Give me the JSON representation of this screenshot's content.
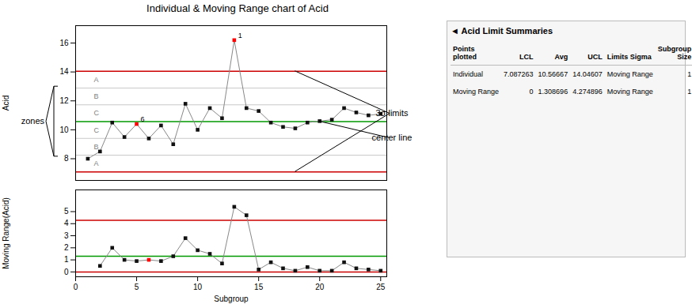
{
  "chart_data": [
    {
      "type": "line",
      "title": "Individual & Moving Range chart of Acid",
      "ylabel": "Acid",
      "x": [
        1,
        2,
        3,
        4,
        5,
        6,
        7,
        8,
        9,
        10,
        11,
        12,
        13,
        14,
        15,
        16,
        17,
        18,
        19,
        20,
        21,
        22,
        23,
        24,
        25
      ],
      "series": [
        {
          "color": "#888888",
          "marker": "square",
          "values": [
            8.0,
            8.5,
            10.5,
            9.5,
            10.4,
            9.4,
            10.3,
            9.0,
            11.8,
            10.0,
            11.5,
            10.8,
            16.2,
            11.5,
            11.3,
            10.5,
            10.2,
            10.1,
            10.5,
            10.6,
            10.7,
            11.5,
            11.2,
            11.0,
            11.1
          ],
          "colors": [
            "#111111",
            "#111111",
            "#111111",
            "#111111",
            "red",
            "#111111",
            "#111111",
            "#111111",
            "#111111",
            "#111111",
            "#111111",
            "#111111",
            "red",
            "#111111",
            "#111111",
            "#111111",
            "#111111",
            "#111111",
            "#111111",
            "#111111",
            "#111111",
            "#111111",
            "#111111",
            "#111111",
            "#111111"
          ]
        }
      ],
      "limit_lines": [
        {
          "value": 14.04607,
          "color": "#cc0000"
        },
        {
          "value": 7.087263,
          "color": "#cc0000"
        },
        {
          "value": 10.56667,
          "color": "#009900"
        }
      ],
      "zone_lines": [
        {
          "value": 12.88625,
          "color": "#bbbbbb"
        },
        {
          "value": 11.72646,
          "color": "#bbbbbb"
        },
        {
          "value": 9.40688,
          "color": "#bbbbbb"
        },
        {
          "value": 8.24709,
          "color": "#bbbbbb"
        }
      ],
      "zone_labels": [
        {
          "text": "A",
          "x": 1.5,
          "y": 13.46616,
          "color": "gray"
        },
        {
          "text": "B",
          "x": 1.5,
          "y": 12.306355,
          "color": "gray"
        },
        {
          "text": "C",
          "x": 1.5,
          "y": 11.146565,
          "color": "gray"
        },
        {
          "text": "C",
          "x": 1.5,
          "y": 9.986775,
          "color": "gray"
        },
        {
          "text": "B",
          "x": 1.5,
          "y": 8.826985,
          "color": "gray"
        },
        {
          "text": "A",
          "x": 1.5,
          "y": 7.6671765,
          "color": "gray"
        }
      ],
      "point_labels": [
        {
          "text": "1",
          "x": 13,
          "y": 16.2
        },
        {
          "text": "6",
          "x": 5,
          "y": 10.4
        }
      ],
      "callouts": [
        {
          "text": "3σ limits",
          "from": [
            {
              "x": 18,
              "y": 14.04607
            },
            {
              "x": 18,
              "y": 7.087263
            }
          ]
        },
        {
          "text": "center line",
          "from": [
            {
              "x": 20,
              "y": 10.56667
            }
          ]
        }
      ],
      "bracket": {
        "text": "zones",
        "from": 12.98625,
        "to": 8.14709
      },
      "xlim": [
        0,
        25.5
      ],
      "xticks": [],
      "ylim": [
        6.5,
        17.2
      ],
      "yticks": [
        8,
        10,
        12,
        14,
        16
      ],
      "grid": false
    },
    {
      "type": "line",
      "ylabel": "Moving Range(Acid)",
      "xlabel": "Subgroup",
      "x": [
        2,
        3,
        4,
        5,
        6,
        7,
        8,
        9,
        10,
        11,
        12,
        13,
        14,
        15,
        16,
        17,
        18,
        19,
        20,
        21,
        22,
        23,
        24,
        25
      ],
      "series": [
        {
          "color": "#888888",
          "marker": "square",
          "values": [
            0.5,
            2.0,
            1.0,
            0.9,
            1.0,
            0.9,
            1.3,
            2.8,
            1.8,
            1.5,
            0.7,
            5.4,
            4.7,
            0.2,
            0.8,
            0.3,
            0.1,
            0.4,
            0.1,
            0.1,
            0.8,
            0.3,
            0.2,
            0.1
          ],
          "colors": [
            "#111111",
            "#111111",
            "#111111",
            "#111111",
            "red",
            "#111111",
            "#111111",
            "#111111",
            "#111111",
            "#111111",
            "#111111",
            "#111111",
            "#111111",
            "#111111",
            "#111111",
            "#111111",
            "#111111",
            "#111111",
            "#111111",
            "#111111",
            "#111111",
            "#111111",
            "#111111",
            "#111111"
          ]
        }
      ],
      "limit_lines": [
        {
          "value": 4.274896,
          "color": "#cc0000"
        },
        {
          "value": 1.308696,
          "color": "#009900"
        },
        {
          "value": 0,
          "color": "#cc0000"
        }
      ],
      "xlim": [
        0,
        25.5
      ],
      "xticks": [
        0,
        5,
        10,
        15,
        20,
        25
      ],
      "ylim": [
        -0.4,
        6.8
      ],
      "yticks": [
        0,
        1,
        2,
        3,
        4,
        5
      ],
      "grid": false
    },
    {
      "type": "table",
      "title": "◄ Acid Limit Summaries",
      "columns": [
        "Points\nplotted",
        "LCL",
        "Avg",
        "UCL",
        "Limits Sigma",
        "Subgroup\nSize"
      ],
      "rows": [
        [
          "Individual",
          "7.087263",
          "10.56667",
          "14.04607",
          "Moving Range",
          "1"
        ],
        [
          "Moving Range",
          "0",
          "1.308696",
          "4.274896",
          "Moving Range",
          "1"
        ]
      ]
    }
  ]
}
